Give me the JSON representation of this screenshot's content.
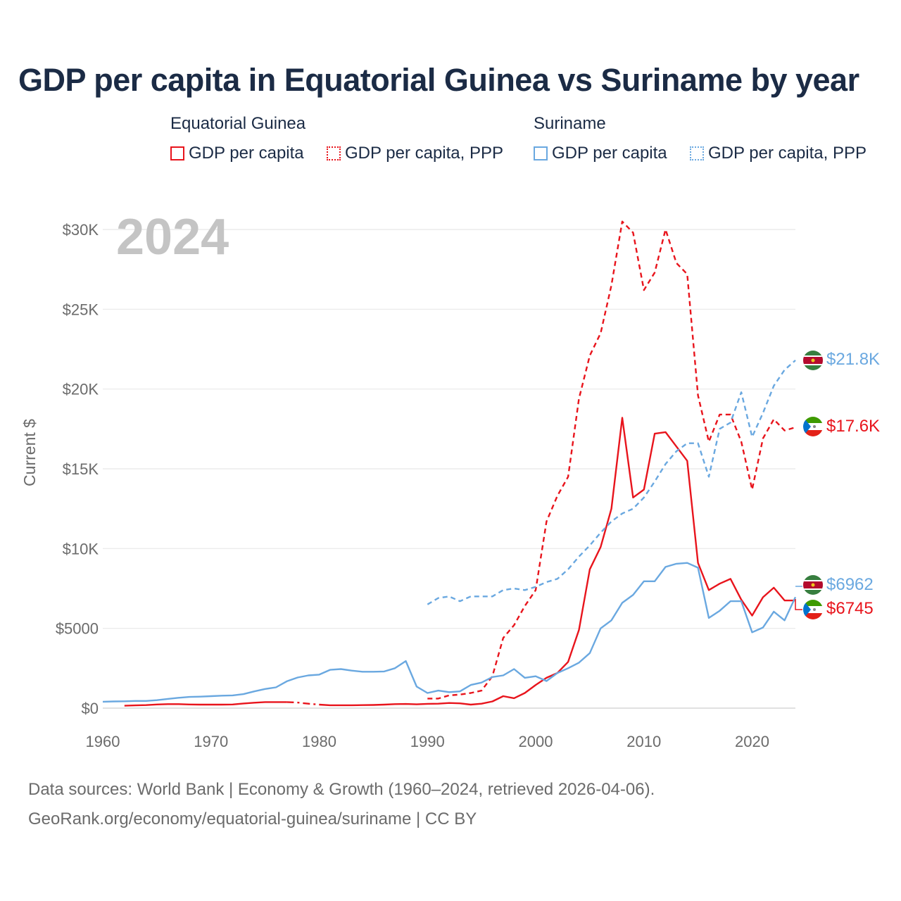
{
  "title": "GDP per capita in Equatorial Guinea vs Suriname by year",
  "year_overlay": "2024",
  "legend": {
    "groups": [
      {
        "country": "Equatorial Guinea",
        "color": "#e8141c",
        "items": [
          {
            "label": "GDP per capita",
            "style": "solid"
          },
          {
            "label": "GDP per capita, PPP",
            "style": "dotted"
          }
        ]
      },
      {
        "country": "Suriname",
        "color": "#6aa8e0",
        "items": [
          {
            "label": "GDP per capita",
            "style": "solid"
          },
          {
            "label": "GDP per capita, PPP",
            "style": "dotted"
          }
        ]
      }
    ]
  },
  "footer": {
    "line1": "Data sources: World Bank | Economy & Growth (1960–2024, retrieved 2026-04-06).",
    "line2": "GeoRank.org/economy/equatorial-guinea/suriname | CC BY"
  },
  "chart_data": {
    "type": "line",
    "title": "GDP per capita in Equatorial Guinea vs Suriname by year",
    "xlabel": "",
    "ylabel": "Current $",
    "xlim": [
      1960,
      2024
    ],
    "ylim": [
      0,
      30000
    ],
    "grid": true,
    "x_ticks": [
      1960,
      1970,
      1980,
      1990,
      2000,
      2010,
      2020
    ],
    "x_tick_labels": [
      "1960",
      "1970",
      "1980",
      "1990",
      "2000",
      "2010",
      "2020"
    ],
    "y_ticks": [
      0,
      5000,
      10000,
      15000,
      20000,
      25000,
      30000
    ],
    "y_tick_labels": [
      "$0",
      "$5000",
      "$10K",
      "$15K",
      "$20K",
      "$25K",
      "$30K"
    ],
    "series": [
      {
        "name": "Equatorial Guinea GDP per capita",
        "country": "Equatorial Guinea",
        "color": "#e8141c",
        "dash": "solid",
        "end_label": "$6745",
        "segments": [
          {
            "x": [
              1962,
              1963,
              1964,
              1965,
              1966,
              1967,
              1968,
              1969,
              1970,
              1971,
              1972,
              1973,
              1974,
              1975,
              1976,
              1977
            ],
            "y": [
              150,
              170,
              190,
              230,
              250,
              250,
              230,
              220,
              220,
              220,
              230,
              290,
              340,
              380,
              380,
              380
            ]
          },
          {
            "x": [
              1977,
              1978,
              1979,
              1980
            ],
            "y": [
              380,
              350,
              280,
              220
            ],
            "dash": "dashdot"
          },
          {
            "x": [
              1980,
              1981,
              1982,
              1983,
              1984,
              1985,
              1986,
              1987,
              1988,
              1989,
              1990,
              1991,
              1992,
              1993,
              1994,
              1995,
              1996,
              1997,
              1998,
              1999,
              2000,
              2001,
              2002,
              2003,
              2004,
              2005,
              2006,
              2007,
              2008,
              2009,
              2010,
              2011,
              2012,
              2013,
              2014,
              2015,
              2016,
              2017,
              2018,
              2019,
              2020,
              2021,
              2022,
              2023,
              2024
            ],
            "y": [
              220,
              180,
              180,
              180,
              190,
              200,
              220,
              250,
              260,
              240,
              270,
              280,
              320,
              300,
              220,
              280,
              420,
              750,
              620,
              950,
              1450,
              1900,
              2200,
              2900,
              4900,
              8700,
              10100,
              12500,
              18200,
              13200,
              13700,
              17200,
              17300,
              16400,
              15500,
              9100,
              7400,
              7800,
              8100,
              6800,
              5800,
              6950,
              7550,
              6750,
              6745
            ]
          }
        ]
      },
      {
        "name": "Equatorial Guinea GDP per capita, PPP",
        "country": "Equatorial Guinea",
        "color": "#e8141c",
        "dash": "dashed",
        "end_label": "$17.6K",
        "segments": [
          {
            "x": [
              1990,
              1991,
              1992,
              1993,
              1994,
              1995,
              1996,
              1997,
              1998,
              1999,
              2000,
              2001,
              2002,
              2003,
              2004,
              2005,
              2006,
              2007,
              2008,
              2009,
              2010,
              2011,
              2012,
              2013,
              2014,
              2015,
              2016,
              2017,
              2018,
              2019,
              2020,
              2021,
              2022,
              2023,
              2024
            ],
            "y": [
              600,
              600,
              800,
              850,
              950,
              1100,
              2000,
              4400,
              5200,
              6400,
              7400,
              11700,
              13300,
              14500,
              19400,
              22100,
              23500,
              26500,
              30500,
              29800,
              26200,
              27300,
              30000,
              27900,
              27200,
              19600,
              16700,
              18400,
              18400,
              16700,
              13700,
              16900,
              18100,
              17400,
              17600
            ]
          }
        ]
      },
      {
        "name": "Suriname GDP per capita",
        "country": "Suriname",
        "color": "#6aa8e0",
        "dash": "solid",
        "end_label": "$6962",
        "segments": [
          {
            "x": [
              1960,
              1961,
              1962,
              1963,
              1964,
              1965,
              1966,
              1967,
              1968,
              1969,
              1970,
              1971,
              1972,
              1973,
              1974,
              1975,
              1976,
              1977,
              1978,
              1979,
              1980,
              1981,
              1982,
              1983,
              1984,
              1985,
              1986,
              1987,
              1988,
              1989,
              1990,
              1991,
              1992,
              1993,
              1994,
              1995,
              1996,
              1997,
              1998,
              1999,
              2000,
              2001,
              2002,
              2003,
              2004,
              2005,
              2006,
              2007,
              2008,
              2009,
              2010,
              2011,
              2012,
              2013,
              2014,
              2015,
              2016,
              2017,
              2018,
              2019,
              2020,
              2021,
              2022,
              2023,
              2024
            ],
            "y": [
              400,
              420,
              430,
              450,
              450,
              500,
              580,
              650,
              700,
              720,
              750,
              780,
              800,
              880,
              1050,
              1200,
              1300,
              1680,
              1920,
              2050,
              2100,
              2400,
              2450,
              2350,
              2280,
              2280,
              2300,
              2500,
              2950,
              1350,
              950,
              1100,
              1000,
              1050,
              1450,
              1600,
              1950,
              2050,
              2450,
              1900,
              2000,
              1700,
              2200,
              2500,
              2850,
              3450,
              5000,
              5500,
              6600,
              7100,
              7950,
              7950,
              8850,
              9050,
              9100,
              8800,
              5650,
              6100,
              6700,
              6700,
              4750,
              5050,
              6050,
              5500,
              6962
            ]
          }
        ]
      },
      {
        "name": "Suriname GDP per capita, PPP",
        "country": "Suriname",
        "color": "#6aa8e0",
        "dash": "dashed",
        "end_label": "$21.8K",
        "segments": [
          {
            "x": [
              1990,
              1991,
              1992,
              1993,
              1994,
              1995,
              1996,
              1997,
              1998,
              1999,
              2000,
              2001,
              2002,
              2003,
              2004,
              2005,
              2006,
              2007,
              2008,
              2009,
              2010,
              2011,
              2012,
              2013,
              2014,
              2015,
              2016,
              2017,
              2018,
              2019,
              2020,
              2021,
              2022,
              2023,
              2024
            ],
            "y": [
              6500,
              6900,
              7000,
              6700,
              7000,
              7000,
              7000,
              7400,
              7500,
              7400,
              7600,
              7900,
              8100,
              8700,
              9500,
              10200,
              11000,
              11700,
              12200,
              12500,
              13200,
              14200,
              15300,
              16100,
              16600,
              16600,
              14500,
              17500,
              17900,
              19800,
              17000,
              18500,
              20200,
              21200,
              21800
            ]
          }
        ]
      }
    ]
  }
}
